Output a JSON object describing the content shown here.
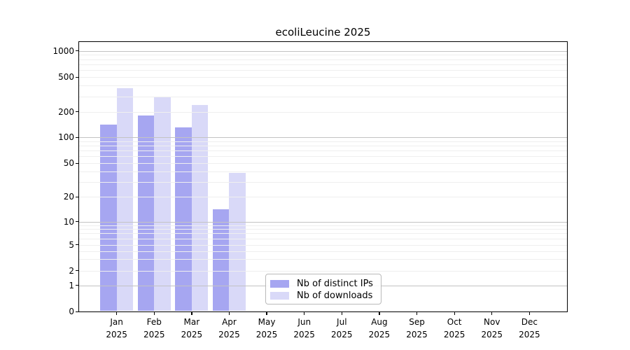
{
  "chart_data": {
    "type": "bar",
    "title": "ecoliLeucine 2025",
    "categories": [
      "Jan",
      "Feb",
      "Mar",
      "Apr",
      "May",
      "Jun",
      "Jul",
      "Aug",
      "Sep",
      "Oct",
      "Nov",
      "Dec"
    ],
    "x_year_label": "2025",
    "series": [
      {
        "name": "Nb of distinct IPs",
        "color": "#a6a6f1",
        "values": [
          140,
          180,
          130,
          14,
          0,
          0,
          0,
          0,
          0,
          0,
          0,
          0
        ]
      },
      {
        "name": "Nb of downloads",
        "color": "#d9d9f8",
        "values": [
          370,
          300,
          240,
          38,
          0,
          0,
          0,
          0,
          0,
          0,
          0,
          0
        ]
      }
    ],
    "xlabel": "",
    "ylabel": "",
    "y_scale": "symlog",
    "y_ticks": [
      0,
      1,
      2,
      5,
      10,
      20,
      50,
      100,
      200,
      500,
      1000
    ],
    "y_tick_labels": [
      "0",
      "1",
      "2",
      "5",
      "10",
      "20",
      "50",
      "100",
      "200",
      "500",
      "1000"
    ],
    "ylim": [
      0,
      1300
    ],
    "grid": "horizontal",
    "grid_major_color": "#c3c3c3",
    "grid_minor_color": "#efefef",
    "legend_position": "lower-center-inside",
    "background_color": "#ffffff",
    "axis_color": "#000000"
  }
}
